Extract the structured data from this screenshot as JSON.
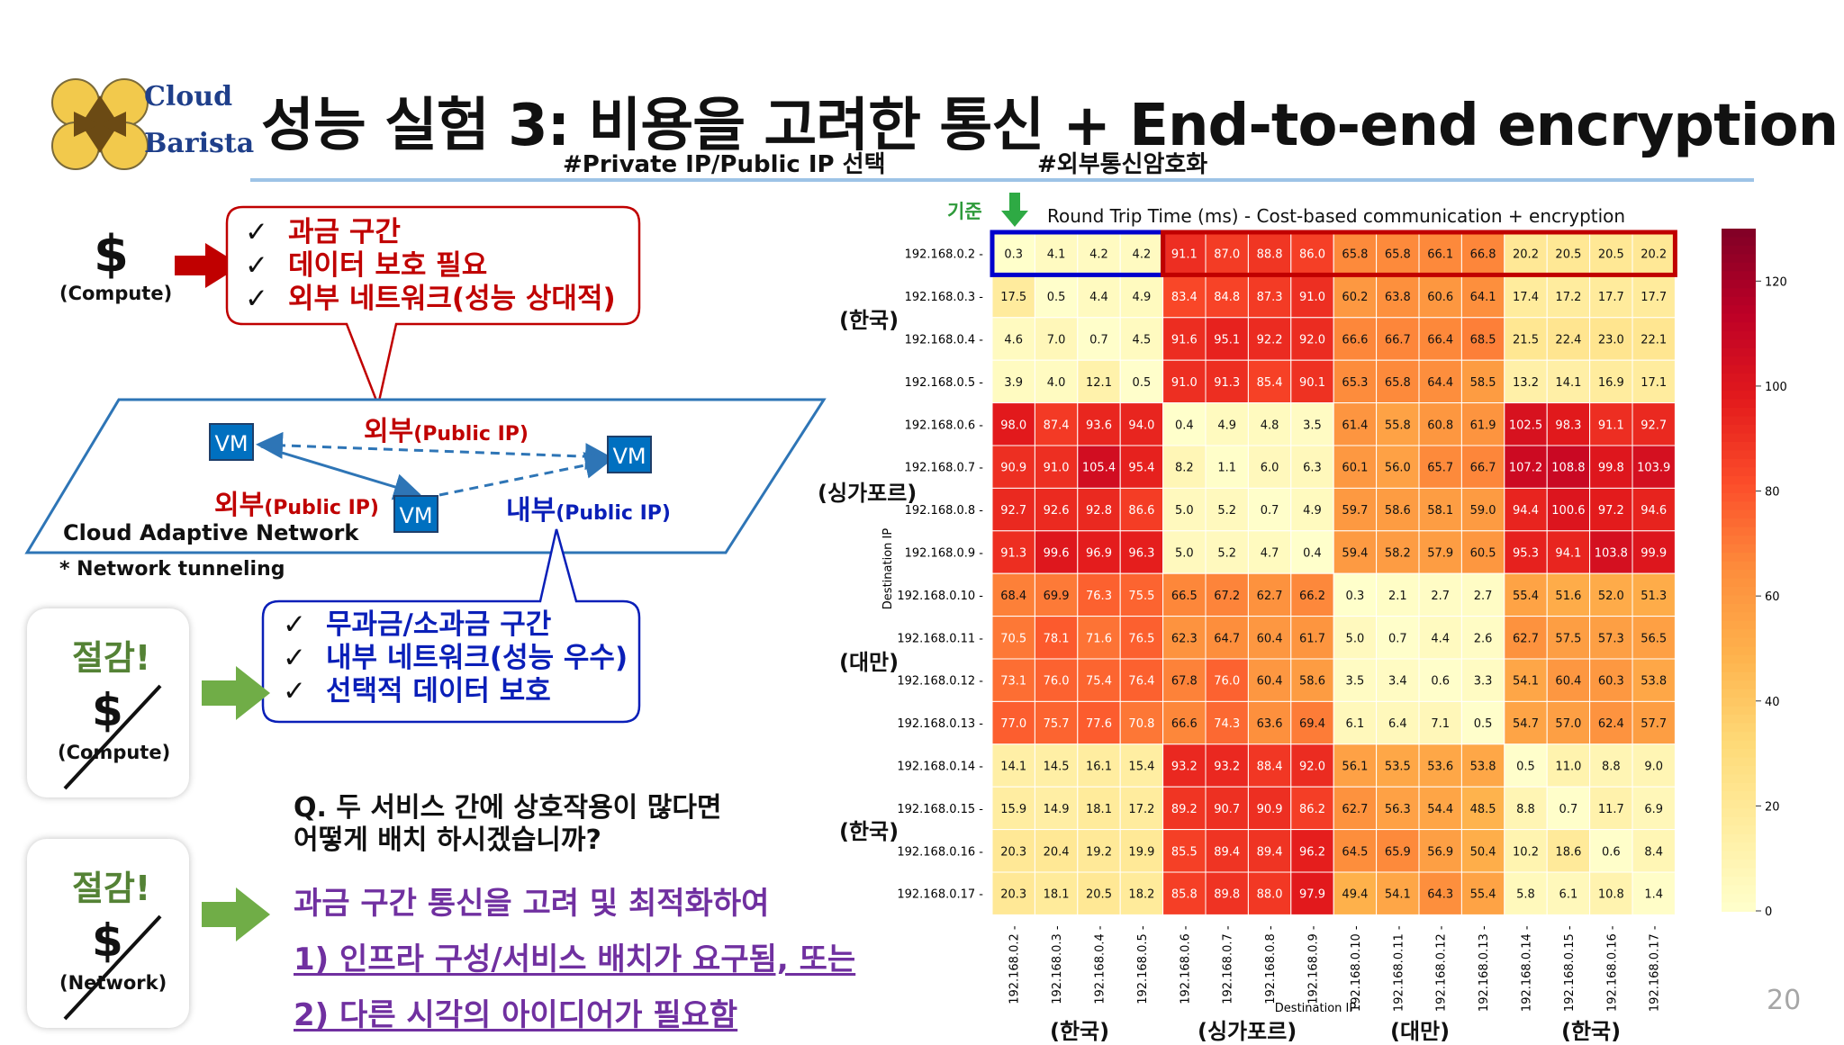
{
  "logo": {
    "word1": "Cloud",
    "word2": "Barista"
  },
  "title": "성능 실험 3: 비용을 고려한 통신 + End-to-end encryption",
  "tags": {
    "left": "#Private IP/Public IP 선택",
    "right": "#외부통신암호화"
  },
  "compute_block": {
    "symbol": "$",
    "caption": "(Compute)"
  },
  "red_bubble": {
    "items": [
      "과금 구간",
      "데이터 보호 필요",
      "외부 네트워크(성능 상대적)"
    ]
  },
  "blue_bubble": {
    "items": [
      "무과금/소과금 구간",
      "내부 네트워크(성능 우수)",
      "선택적 데이터 보호"
    ]
  },
  "network": {
    "vm_label": "VM",
    "external1": {
      "main": "외부",
      "sub": "(Public IP)"
    },
    "external2": {
      "main": "외부",
      "sub": "(Public IP)"
    },
    "internal": {
      "main": "내부",
      "sub": "(Public IP)"
    },
    "plane_label": "Cloud Adaptive Network",
    "footnote": "* Network tunneling"
  },
  "save_cards": [
    {
      "title": "절감!",
      "symbol": "$",
      "caption": "(Compute)"
    },
    {
      "title": "절감!",
      "symbol": "$",
      "caption": "(Network)"
    }
  ],
  "question": {
    "line1": "Q. 두 서비스 간에 상호작용이 많다면",
    "line2": "어떻게 배치 하시겠습니까?"
  },
  "answer": {
    "line1": "과금 구간 통신을 고려 및 최적화하여",
    "line2": "1) 인프라 구성/서비스 배치가 요구됨, 또는",
    "line3": "2) 다른 시각의 아이디어가 필요함"
  },
  "heatmap_header": {
    "baseline": "기준",
    "title": "Round Trip Time (ms) - Cost-based communication + encryption"
  },
  "regions_y": [
    "(한국)",
    "(싱가포르)",
    "(대만)",
    "(한국)"
  ],
  "regions_x": [
    "(한국)",
    "(싱가포르)",
    "(대만)",
    "(한국)"
  ],
  "page_number": "20",
  "chart_data": {
    "type": "heatmap",
    "title": "Round Trip Time (ms) - Cost-based communication + encryption",
    "xlabel": "Destination IP",
    "ylabel": "Destination IP",
    "x_categories": [
      "192.168.0.2",
      "192.168.0.3",
      "192.168.0.4",
      "192.168.0.5",
      "192.168.0.6",
      "192.168.0.7",
      "192.168.0.8",
      "192.168.0.9",
      "192.168.0.10",
      "192.168.0.11",
      "192.168.0.12",
      "192.168.0.13",
      "192.168.0.14",
      "192.168.0.15",
      "192.168.0.16",
      "192.168.0.17"
    ],
    "y_categories": [
      "192.168.0.2",
      "192.168.0.3",
      "192.168.0.4",
      "192.168.0.5",
      "192.168.0.6",
      "192.168.0.7",
      "192.168.0.8",
      "192.168.0.9",
      "192.168.0.10",
      "192.168.0.11",
      "192.168.0.12",
      "192.168.0.13",
      "192.168.0.14",
      "192.168.0.15",
      "192.168.0.16",
      "192.168.0.17"
    ],
    "values": [
      [
        0.3,
        4.1,
        4.2,
        4.2,
        91.1,
        87.0,
        88.8,
        86.0,
        65.8,
        65.8,
        66.1,
        66.8,
        20.2,
        20.5,
        20.5,
        20.2
      ],
      [
        17.5,
        0.5,
        4.4,
        4.9,
        83.4,
        84.8,
        87.3,
        91.0,
        60.2,
        63.8,
        60.6,
        64.1,
        17.4,
        17.2,
        17.7,
        17.7
      ],
      [
        4.6,
        7.0,
        0.7,
        4.5,
        91.6,
        95.1,
        92.2,
        92.0,
        66.6,
        66.7,
        66.4,
        68.5,
        21.5,
        22.4,
        23.0,
        22.1
      ],
      [
        3.9,
        4.0,
        12.1,
        0.5,
        91.0,
        91.3,
        85.4,
        90.1,
        65.3,
        65.8,
        64.4,
        58.5,
        13.2,
        14.1,
        16.9,
        17.1
      ],
      [
        98.0,
        87.4,
        93.6,
        94.0,
        0.4,
        4.9,
        4.8,
        3.5,
        61.4,
        55.8,
        60.8,
        61.9,
        102.5,
        98.3,
        91.1,
        92.7
      ],
      [
        90.9,
        91.0,
        105.4,
        95.4,
        8.2,
        1.1,
        6.0,
        6.3,
        60.1,
        56.0,
        65.7,
        66.7,
        107.2,
        108.8,
        99.8,
        103.9
      ],
      [
        92.7,
        92.6,
        92.8,
        86.6,
        5.0,
        5.2,
        0.7,
        4.9,
        59.7,
        58.6,
        58.1,
        59.0,
        94.4,
        100.6,
        97.2,
        94.6
      ],
      [
        91.3,
        99.6,
        96.9,
        96.3,
        5.0,
        5.2,
        4.7,
        0.4,
        59.4,
        58.2,
        57.9,
        60.5,
        95.3,
        94.1,
        103.8,
        99.9
      ],
      [
        68.4,
        69.9,
        76.3,
        75.5,
        66.5,
        67.2,
        62.7,
        66.2,
        0.3,
        2.1,
        2.7,
        2.7,
        55.4,
        51.6,
        52.0,
        51.3
      ],
      [
        70.5,
        78.1,
        71.6,
        76.5,
        62.3,
        64.7,
        60.4,
        61.7,
        5.0,
        0.7,
        4.4,
        2.6,
        62.7,
        57.5,
        57.3,
        56.5
      ],
      [
        73.1,
        76.0,
        75.4,
        76.4,
        67.8,
        76.0,
        60.4,
        58.6,
        3.5,
        3.4,
        0.6,
        3.3,
        54.1,
        60.4,
        60.3,
        53.8
      ],
      [
        77.0,
        75.7,
        77.6,
        70.8,
        66.6,
        74.3,
        63.6,
        69.4,
        6.1,
        6.4,
        7.1,
        0.5,
        54.7,
        57.0,
        62.4,
        57.7
      ],
      [
        14.1,
        14.5,
        16.1,
        15.4,
        93.2,
        93.2,
        88.4,
        92.0,
        56.1,
        53.5,
        53.6,
        53.8,
        0.5,
        11.0,
        8.8,
        9.0
      ],
      [
        15.9,
        14.9,
        18.1,
        17.2,
        89.2,
        90.7,
        90.9,
        86.2,
        62.7,
        56.3,
        54.4,
        48.5,
        8.8,
        0.7,
        11.7,
        6.9
      ],
      [
        20.3,
        20.4,
        19.2,
        19.9,
        85.5,
        89.4,
        89.4,
        96.2,
        64.5,
        65.9,
        56.9,
        50.4,
        10.2,
        18.6,
        0.6,
        8.4
      ],
      [
        20.3,
        18.1,
        20.5,
        18.2,
        85.8,
        89.8,
        88.0,
        97.9,
        49.4,
        54.1,
        64.3,
        55.4,
        5.8,
        6.1,
        10.8,
        1.4
      ]
    ],
    "colorbar_range": [
      0,
      130
    ],
    "colorbar_ticks": [
      0,
      20,
      40,
      60,
      80,
      100,
      120
    ],
    "colormap": "YlOrRd",
    "highlight_boxes": [
      {
        "color": "#0000cc",
        "row": 0,
        "col_start": 0,
        "col_end": 3
      },
      {
        "color": "#c00000",
        "row": 0,
        "col_start": 4,
        "col_end": 15
      }
    ]
  }
}
